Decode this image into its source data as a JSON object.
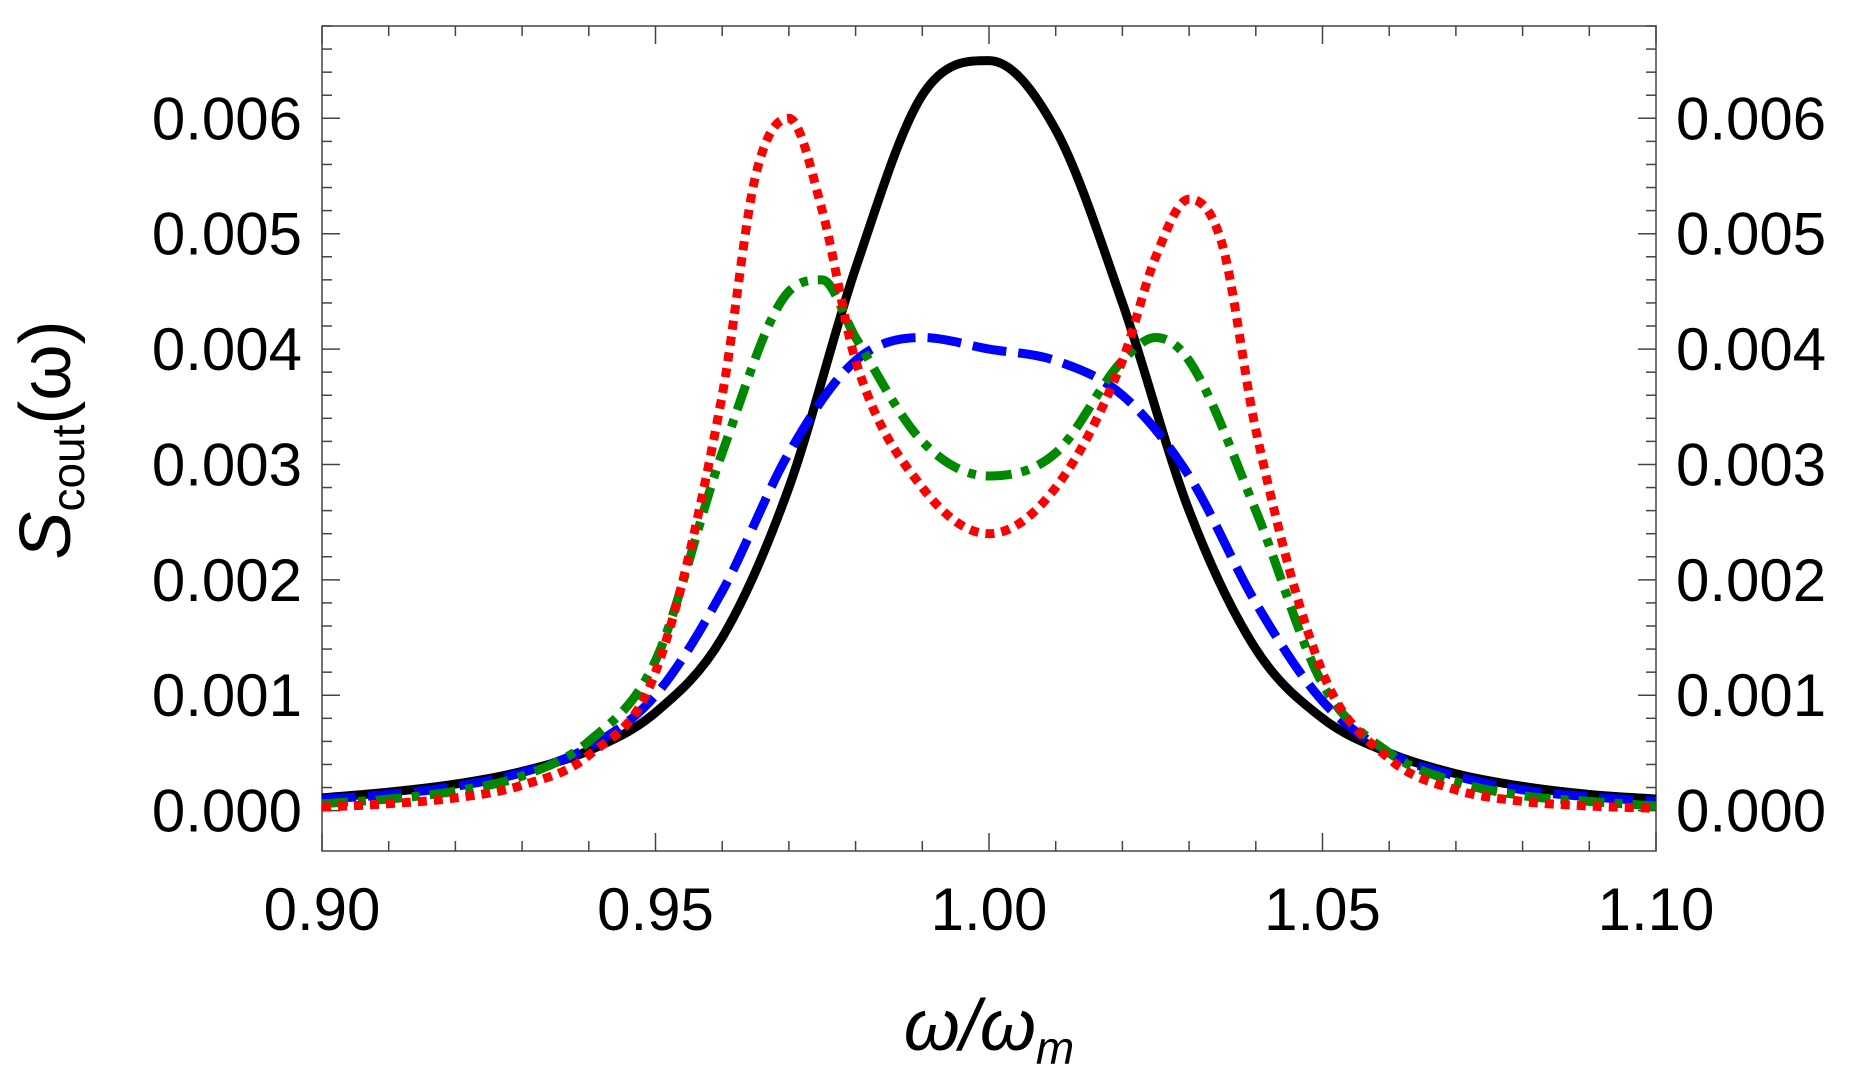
{
  "chart_data": {
    "type": "line",
    "title": "",
    "xlabel": "ω/ωm",
    "xlabel_parts": {
      "main": "ω/ω",
      "sub": "m"
    },
    "ylabel": "Scout(ω)",
    "ylabel_parts": {
      "main": "S",
      "sub": "cout",
      "tail": "(ω)"
    },
    "xlim": [
      0.9,
      1.1
    ],
    "ylim": [
      -0.00035,
      0.0068
    ],
    "x_ticks": [
      0.9,
      0.95,
      1.0,
      1.05,
      1.1
    ],
    "x_tick_labels": [
      "0.90",
      "0.95",
      "1.00",
      "1.05",
      "1.10"
    ],
    "y_ticks": [
      0.0,
      0.001,
      0.002,
      0.003,
      0.004,
      0.005,
      0.006
    ],
    "y_tick_labels": [
      "0.000",
      "0.001",
      "0.002",
      "0.003",
      "0.004",
      "0.005",
      "0.006"
    ],
    "grid": false,
    "legend": "none",
    "series": [
      {
        "color": "#000000",
        "style": "solid",
        "x": [
          0.9,
          0.91,
          0.92,
          0.93,
          0.94,
          0.95,
          0.96,
          0.97,
          0.98,
          0.99,
          1.0,
          1.01,
          1.02,
          1.03,
          1.04,
          1.05,
          1.06,
          1.07,
          1.08,
          1.09,
          1.1
        ],
        "y": [
          0.00011,
          0.00016,
          0.00023,
          0.00034,
          0.00052,
          0.00085,
          0.0015,
          0.0028,
          0.0047,
          0.0062,
          0.0065,
          0.0059,
          0.0044,
          0.0026,
          0.0014,
          0.0008,
          0.0005,
          0.00032,
          0.00021,
          0.00014,
          0.0001
        ]
      },
      {
        "color": "#0000ff",
        "style": "dashed",
        "x": [
          0.9,
          0.91,
          0.92,
          0.93,
          0.94,
          0.95,
          0.96,
          0.97,
          0.98,
          0.99,
          1.0,
          1.01,
          1.02,
          1.03,
          1.04,
          1.05,
          1.06,
          1.07,
          1.08,
          1.09,
          1.1
        ],
        "y": [
          0.0001,
          0.00014,
          0.00021,
          0.00033,
          0.00055,
          0.001,
          0.0019,
          0.0031,
          0.0039,
          0.0041,
          0.004,
          0.0039,
          0.0036,
          0.0029,
          0.0018,
          0.00095,
          0.0005,
          0.0003,
          0.00018,
          0.00012,
          8e-05
        ]
      },
      {
        "color": "#008800",
        "style": "dashdot",
        "x": [
          0.9,
          0.91,
          0.92,
          0.93,
          0.94,
          0.95,
          0.96,
          0.97,
          0.975,
          0.98,
          0.99,
          1.0,
          1.01,
          1.02,
          1.025,
          1.03,
          1.04,
          1.05,
          1.06,
          1.07,
          1.08,
          1.09,
          1.1
        ],
        "y": [
          6e-05,
          0.0001,
          0.00017,
          0.0003,
          0.0006,
          0.0013,
          0.0031,
          0.0045,
          0.0046,
          0.0041,
          0.0032,
          0.0029,
          0.0031,
          0.0039,
          0.0041,
          0.0039,
          0.0026,
          0.0011,
          0.0005,
          0.00025,
          0.00013,
          8e-05,
          4e-05
        ]
      },
      {
        "color": "#ff0000",
        "style": "dotted",
        "x": [
          0.9,
          0.91,
          0.92,
          0.93,
          0.94,
          0.95,
          0.96,
          0.965,
          0.97,
          0.975,
          0.98,
          0.99,
          1.0,
          1.01,
          1.02,
          1.025,
          1.03,
          1.035,
          1.04,
          1.05,
          1.06,
          1.07,
          1.08,
          1.09,
          1.1
        ],
        "y": [
          3e-05,
          6e-05,
          0.00011,
          0.00022,
          0.00048,
          0.0012,
          0.0036,
          0.0055,
          0.006,
          0.0052,
          0.0039,
          0.0028,
          0.0024,
          0.0028,
          0.0039,
          0.0048,
          0.0053,
          0.0049,
          0.0033,
          0.0012,
          0.00045,
          0.00018,
          8e-05,
          4e-05,
          2e-05
        ]
      }
    ]
  }
}
